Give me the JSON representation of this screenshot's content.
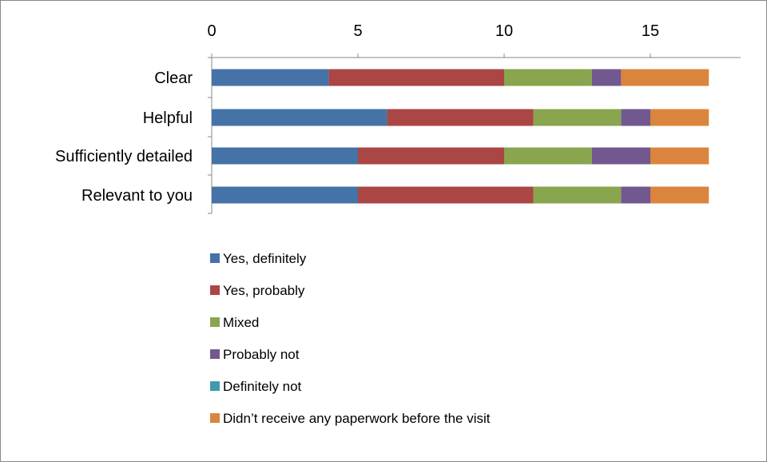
{
  "chart_data": {
    "type": "bar",
    "orientation": "horizontal",
    "stacked": true,
    "title": "",
    "xlabel": "",
    "ylabel": "",
    "xlim": [
      0,
      18
    ],
    "x_ticks": [
      0,
      5,
      10,
      15
    ],
    "x_axis_position": "top",
    "grid": false,
    "legend_position": "bottom",
    "categories": [
      "Clear",
      "Helpful",
      "Sufficiently detailed",
      "Relevant to you"
    ],
    "series": [
      {
        "name": "Yes, definitely",
        "color": "#4572A7",
        "values": [
          4,
          6,
          5,
          5
        ]
      },
      {
        "name": "Yes, probably",
        "color": "#AA4643",
        "values": [
          6,
          5,
          5,
          6
        ]
      },
      {
        "name": "Mixed",
        "color": "#89A54E",
        "values": [
          3,
          3,
          3,
          3
        ]
      },
      {
        "name": "Probably not",
        "color": "#71588F",
        "values": [
          1,
          1,
          2,
          1
        ]
      },
      {
        "name": "Definitely not",
        "color": "#4198AF",
        "values": [
          0,
          0,
          0,
          0
        ]
      },
      {
        "name": "Didn’t receive any paperwork before the visit",
        "color": "#DB843D",
        "values": [
          3,
          2,
          2,
          2
        ]
      }
    ]
  }
}
